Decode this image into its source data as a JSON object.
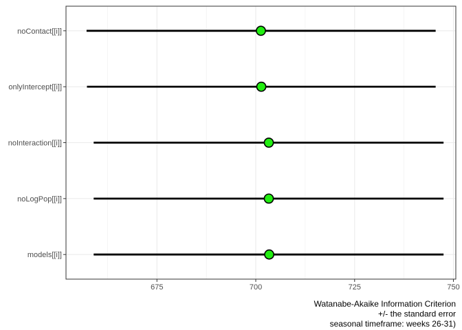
{
  "chart_data": {
    "type": "dot-interval",
    "categories": [
      "noContact[[i]]",
      "onlyIntercept[[i]]",
      "noInteraction[[i]]",
      "noLogPop[[i]]",
      "models[[i]]"
    ],
    "series": [
      {
        "points": [
          {
            "category": "noContact[[i]]",
            "value": 701.3,
            "low": 657.2,
            "high": 745.5
          },
          {
            "category": "onlyIntercept[[i]]",
            "value": 701.4,
            "low": 657.3,
            "high": 745.5
          },
          {
            "category": "noInteraction[[i]]",
            "value": 703.3,
            "low": 659.0,
            "high": 747.5
          },
          {
            "category": "noLogPop[[i]]",
            "value": 703.3,
            "low": 659.0,
            "high": 747.5
          },
          {
            "category": "models[[i]]",
            "value": 703.4,
            "low": 659.0,
            "high": 747.5
          }
        ]
      }
    ],
    "x_ticks": [
      675,
      700,
      725,
      750
    ],
    "xlim": [
      652.0,
      750.6
    ],
    "xlabel_lines": [
      "Watanabe-Akaike Information Criterion",
      "+/- the standard error",
      "seasonal timeframe: weeks 26-31)"
    ],
    "ylabel": "",
    "title": "",
    "grid": true,
    "legend": "none",
    "colors": {
      "point_fill": "#22ee11",
      "point_stroke": "#000000",
      "interval": "#000000",
      "grid": "#ebebeb",
      "panel_border": "#333333",
      "tick_label": "#4d4d4d"
    }
  }
}
